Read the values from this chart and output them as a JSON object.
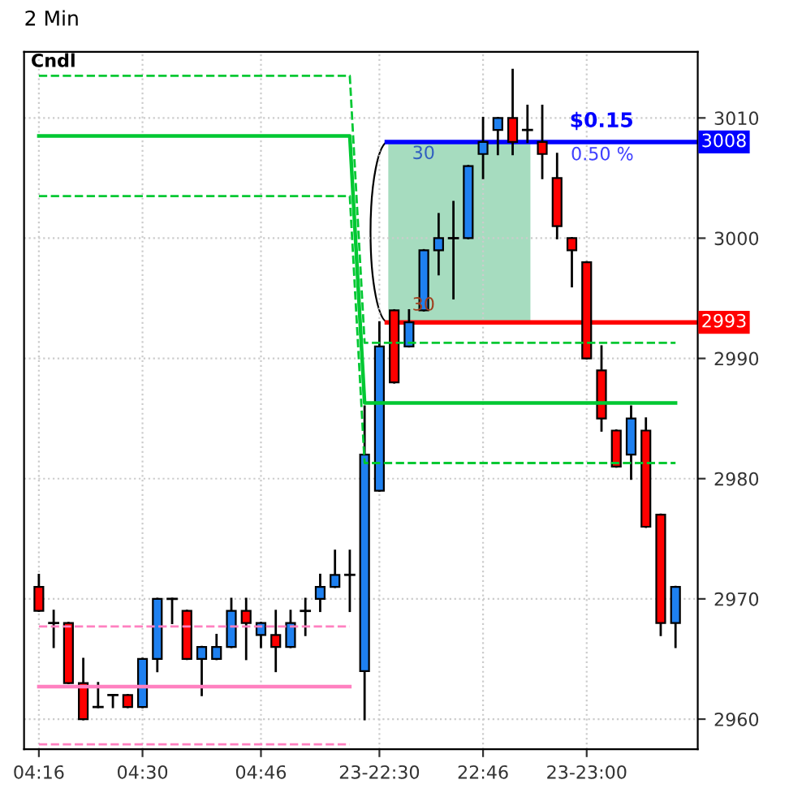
{
  "chart_data": {
    "type": "candlestick",
    "title": "2 Min",
    "categories": [
      "04:16",
      null,
      null,
      null,
      null,
      null,
      null,
      "04:30",
      null,
      null,
      null,
      null,
      null,
      null,
      null,
      "04:46",
      null,
      null,
      null,
      null,
      null,
      null,
      null,
      "23-22:30",
      null,
      null,
      null,
      null,
      null,
      null,
      "22:46",
      null,
      null,
      null,
      null,
      null,
      null,
      "23-23:00",
      null,
      null,
      null,
      null,
      null,
      null
    ],
    "ohlc": [
      [
        2971,
        2972,
        2969,
        2969
      ],
      [
        2968,
        2969,
        2966,
        2968
      ],
      [
        2968,
        2968,
        2963,
        2963
      ],
      [
        2963,
        2965,
        2960,
        2960
      ],
      [
        2961,
        2963,
        2961,
        2961
      ],
      [
        2962,
        2962,
        2961,
        2962
      ],
      [
        2962,
        2962,
        2961,
        2961
      ],
      [
        2961,
        2965,
        2961,
        2965
      ],
      [
        2965,
        2970,
        2964,
        2970
      ],
      [
        2970,
        2970,
        2968,
        2970
      ],
      [
        2969,
        2969,
        2965,
        2965
      ],
      [
        2965,
        2966,
        2962,
        2966
      ],
      [
        2965,
        2967,
        2965,
        2966
      ],
      [
        2966,
        2970,
        2966,
        2969
      ],
      [
        2969,
        2970,
        2965,
        2968
      ],
      [
        2967,
        2968,
        2966,
        2968
      ],
      [
        2967,
        2969,
        2964,
        2966
      ],
      [
        2966,
        2969,
        2966,
        2968
      ],
      [
        2969,
        2970,
        2967,
        2969
      ],
      [
        2970,
        2972,
        2969,
        2971
      ],
      [
        2971,
        2974,
        2971,
        2972
      ],
      [
        2972,
        2974,
        2969,
        2972
      ],
      [
        2964,
        2986,
        2960,
        2982
      ],
      [
        2979,
        2993,
        2979,
        2991
      ],
      [
        2994,
        2994,
        2988,
        2988
      ],
      [
        2991,
        2994,
        2991,
        2993
      ],
      [
        2994,
        2999,
        2994,
        2999
      ],
      [
        2999,
        3002,
        2997,
        3000
      ],
      [
        3000,
        3003,
        2995,
        3000
      ],
      [
        3000,
        3006,
        3000,
        3006
      ],
      [
        3007,
        3010,
        3005,
        3008
      ],
      [
        3009,
        3010,
        3007,
        3010
      ],
      [
        3010,
        3014,
        3007,
        3008
      ],
      [
        3009,
        3011,
        3008,
        3009
      ],
      [
        3008,
        3011,
        3005,
        3007
      ],
      [
        3005,
        3007,
        3000,
        3001
      ],
      [
        3000,
        3000,
        2996,
        2999
      ],
      [
        2998,
        2998,
        2990,
        2990
      ],
      [
        2989,
        2991,
        2984,
        2985
      ],
      [
        2984,
        2984,
        2981,
        2981
      ],
      [
        2982,
        2986,
        2980,
        2985
      ],
      [
        2984,
        2985,
        2976,
        2976
      ],
      [
        2977,
        2977,
        2967,
        2968
      ],
      [
        2968,
        2971,
        2966,
        2971
      ]
    ],
    "colors": [
      "#ff0000",
      "#000000",
      "#ff0000",
      "#ff0000",
      "#000000",
      "#000000",
      "#ff0000",
      "#1e80f0",
      "#1e80f0",
      "#000000",
      "#ff0000",
      "#1e80f0",
      "#1e80f0",
      "#1e80f0",
      "#ff0000",
      "#1e80f0",
      "#ff0000",
      "#1e80f0",
      "#000000",
      "#1e80f0",
      "#1e80f0",
      "#000000",
      "#1e80f0",
      "#1e80f0",
      "#ff0000",
      "#1e80f0",
      "#1e80f0",
      "#1e80f0",
      "#000000",
      "#1e80f0",
      "#1e80f0",
      "#1e80f0",
      "#ff0000",
      "#000000",
      "#ff0000",
      "#ff0000",
      "#ff0000",
      "#ff0000",
      "#ff0000",
      "#ff0000",
      "#1e80f0",
      "#ff0000",
      "#ff0000",
      "#1e80f0"
    ],
    "series": [
      {
        "type": "line",
        "color": "#00c832",
        "line_style": "solid",
        "values": [
          3008.5,
          3008.5,
          3008.5,
          3008.5,
          3008.5,
          3008.5,
          3008.5,
          3008.5,
          3008.5,
          3008.5,
          3008.5,
          3008.5,
          3008.5,
          3008.5,
          3008.5,
          3008.5,
          3008.5,
          3008.5,
          3008.5,
          3008.5,
          3008.5,
          3008.5,
          2986.3,
          2986.3,
          2986.3,
          2986.3,
          2986.3,
          2986.3,
          2986.3,
          2986.3,
          2986.3,
          2986.3,
          2986.3,
          2986.3,
          2986.3,
          2986.3,
          2986.3,
          2986.3,
          2986.3,
          2986.3,
          2986.3,
          2986.3,
          2986.3,
          2986.3
        ]
      },
      {
        "type": "line",
        "color": "#00c832",
        "line_style": "dashed",
        "values": [
          3013.5,
          3013.5,
          3013.5,
          3013.5,
          3013.5,
          3013.5,
          3013.5,
          3013.5,
          3013.5,
          3013.5,
          3013.5,
          3013.5,
          3013.5,
          3013.5,
          3013.5,
          3013.5,
          3013.5,
          3013.5,
          3013.5,
          3013.5,
          3013.5,
          3013.5,
          2991.3,
          2991.3,
          2991.3,
          2991.3,
          2991.3,
          2991.3,
          2991.3,
          2991.3,
          2991.3,
          2991.3,
          2991.3,
          2991.3,
          2991.3,
          2991.3,
          2991.3,
          2991.3,
          2991.3,
          2991.3,
          2991.3,
          2991.3,
          2991.3,
          2991.3
        ]
      },
      {
        "type": "line",
        "color": "#00c832",
        "line_style": "dashed",
        "values": [
          3003.5,
          3003.5,
          3003.5,
          3003.5,
          3003.5,
          3003.5,
          3003.5,
          3003.5,
          3003.5,
          3003.5,
          3003.5,
          3003.5,
          3003.5,
          3003.5,
          3003.5,
          3003.5,
          3003.5,
          3003.5,
          3003.5,
          3003.5,
          3003.5,
          3003.5,
          2981.3,
          2981.3,
          2981.3,
          2981.3,
          2981.3,
          2981.3,
          2981.3,
          2981.3,
          2981.3,
          2981.3,
          2981.3,
          2981.3,
          2981.3,
          2981.3,
          2981.3,
          2981.3,
          2981.3,
          2981.3,
          2981.3,
          2981.3,
          2981.3,
          2981.3
        ]
      },
      {
        "type": "line",
        "color": "#ff80c0",
        "line_style": "solid",
        "values": [
          2962.7,
          2962.7,
          2962.7,
          2962.7,
          2962.7,
          2962.7,
          2962.7,
          2962.7,
          2962.7,
          2962.7,
          2962.7,
          2962.7,
          2962.7,
          2962.7,
          2962.7,
          2962.7,
          2962.7,
          2962.7,
          2962.7,
          2962.7,
          2962.7,
          2962.7,
          null,
          null,
          null,
          null,
          null,
          null,
          null,
          null,
          null,
          null,
          null,
          null,
          null,
          null,
          null,
          null,
          null,
          null,
          null,
          null,
          null,
          null
        ]
      },
      {
        "type": "line",
        "color": "#ff80c0",
        "line_style": "dashed",
        "values": [
          2967.7,
          2967.7,
          2967.7,
          2967.7,
          2967.7,
          2967.7,
          2967.7,
          2967.7,
          2967.7,
          2967.7,
          2967.7,
          2967.7,
          2967.7,
          2967.7,
          2967.7,
          2967.7,
          2967.7,
          2967.7,
          2967.7,
          2967.7,
          2967.7,
          2967.7,
          null,
          null,
          null,
          null,
          null,
          null,
          null,
          null,
          null,
          null,
          null,
          null,
          null,
          null,
          null,
          null,
          null,
          null,
          null,
          null,
          null,
          null
        ]
      },
      {
        "type": "line",
        "color": "#ff80c0",
        "line_style": "dashed",
        "values": [
          2957.9,
          2957.9,
          2957.9,
          2957.9,
          2957.9,
          2957.9,
          2957.9,
          2957.9,
          2957.9,
          2957.9,
          2957.9,
          2957.9,
          2957.9,
          2957.9,
          2957.9,
          2957.9,
          2957.9,
          2957.9,
          2957.9,
          2957.9,
          2957.9,
          2957.9,
          null,
          null,
          null,
          null,
          null,
          null,
          null,
          null,
          null,
          null,
          null,
          null,
          null,
          null,
          null,
          null,
          null,
          null,
          null,
          null,
          null,
          null
        ]
      }
    ],
    "ref_lines": [
      {
        "axis": "y",
        "value": 3008,
        "label": "3008",
        "color": "#0000ff"
      },
      {
        "axis": "y",
        "value": 2993,
        "label": "2993",
        "color": "#ff0000"
      }
    ],
    "annotations": [
      "Cndl",
      "$0.15",
      "0.50 %",
      "30",
      "30"
    ],
    "ylim": [
      2957.5,
      3015.5
    ],
    "yticks": [
      2960,
      2970,
      2980,
      2990,
      3000,
      3010
    ],
    "grid": true,
    "legend": false
  }
}
